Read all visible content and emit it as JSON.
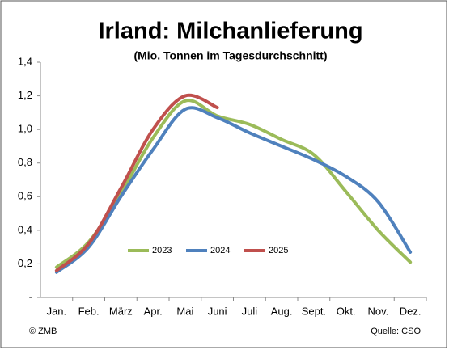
{
  "chart_data": {
    "type": "line",
    "title": "Irland: Milchanlieferung",
    "subtitle": "(Mio. Tonnen im Tagesdurchschnitt)",
    "categories": [
      "Jan.",
      "Feb.",
      "März",
      "Apr.",
      "Mai",
      "Juni",
      "Juli",
      "Aug.",
      "Sept.",
      "Okt.",
      "Nov.",
      "Dez."
    ],
    "series": [
      {
        "name": "2023",
        "color": "#9bbb59",
        "values": [
          0.18,
          0.33,
          0.62,
          0.95,
          1.17,
          1.08,
          1.03,
          0.94,
          0.85,
          0.63,
          0.4,
          0.21
        ]
      },
      {
        "name": "2024",
        "color": "#4f81bd",
        "values": [
          0.15,
          0.3,
          0.6,
          0.88,
          1.12,
          1.07,
          0.98,
          0.9,
          0.82,
          0.72,
          0.57,
          0.27
        ]
      },
      {
        "name": "2025",
        "color": "#c0504d",
        "values": [
          0.16,
          0.32,
          0.65,
          1.0,
          1.2,
          1.13,
          null,
          null,
          null,
          null,
          null,
          null
        ]
      }
    ],
    "ylim": [
      0,
      1.4
    ],
    "yticks": [
      {
        "value": 0,
        "label": "-"
      },
      {
        "value": 0.2,
        "label": "0,2"
      },
      {
        "value": 0.4,
        "label": "0,4"
      },
      {
        "value": 0.6,
        "label": "0,6"
      },
      {
        "value": 0.8,
        "label": "0,8"
      },
      {
        "value": 1.0,
        "label": "1,0"
      },
      {
        "value": 1.2,
        "label": "1,2"
      },
      {
        "value": 1.4,
        "label": "1,4"
      }
    ],
    "footer_left": "© ZMB",
    "footer_right": "Quelle: CSO"
  }
}
